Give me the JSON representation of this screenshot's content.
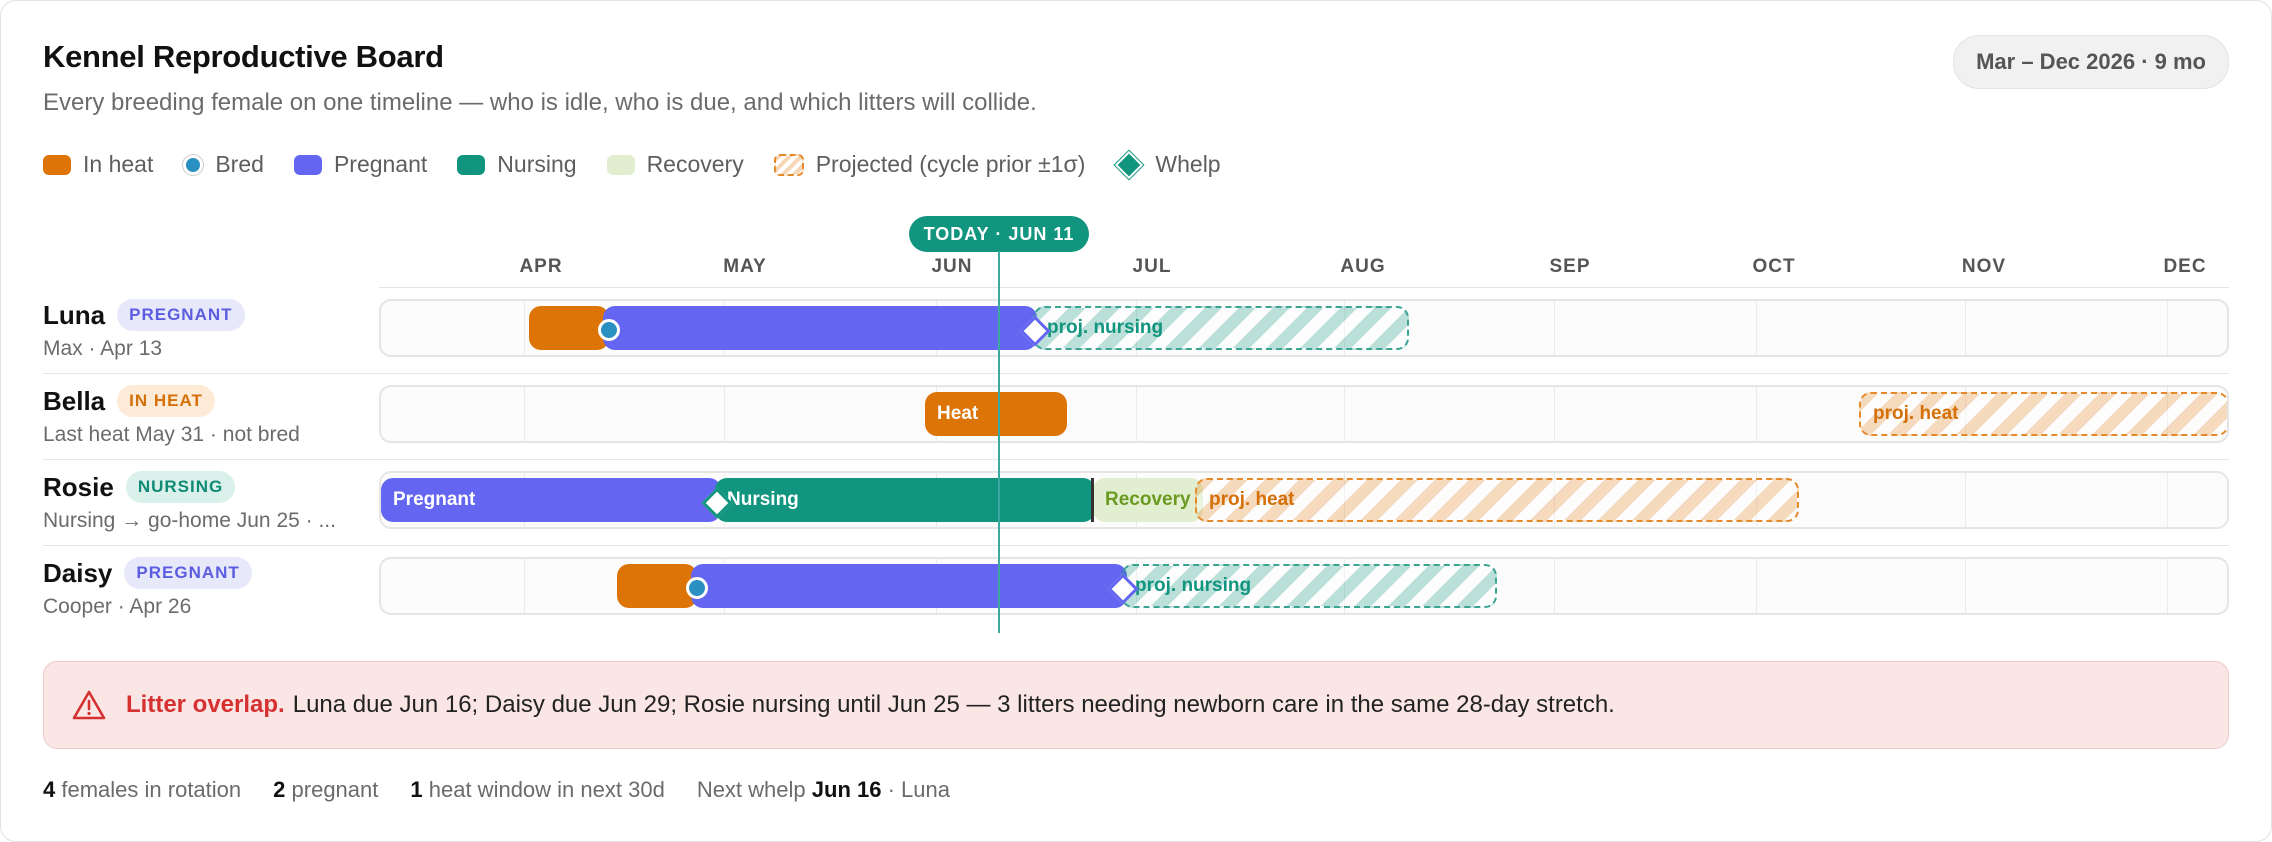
{
  "header": {
    "title": "Kennel Reproductive Board",
    "subtitle": "Every breeding female on one timeline — who is idle, who is due, and which litters will collide.",
    "range": "Mar – Dec 2026 · 9 mo"
  },
  "legend": {
    "heat": "In heat",
    "bred": "Bred",
    "pregnant": "Pregnant",
    "nursing": "Nursing",
    "recovery": "Recovery",
    "projected": "Projected (cycle prior ±1σ)",
    "whelp": "Whelp"
  },
  "today_label": "TODAY · JUN 11",
  "months": [
    "APR",
    "MAY",
    "JUN",
    "JUL",
    "AUG",
    "SEP",
    "OCT",
    "NOV",
    "DEC"
  ],
  "rows": [
    {
      "name": "Luna",
      "status": "PREGNANT",
      "meta": "Max · Apr 13",
      "proj_label": "proj. nursing"
    },
    {
      "name": "Bella",
      "status": "IN HEAT",
      "meta": "Last heat May 31 · not bred",
      "heat_label": "Heat",
      "proj_label": "proj. heat"
    },
    {
      "name": "Rosie",
      "status": "NURSING",
      "meta": "Nursing → go-home Jun 25 · ...",
      "pregnant_label": "Pregnant",
      "nursing_label": "Nursing",
      "recovery_label": "Recovery",
      "proj_label": "proj. heat"
    },
    {
      "name": "Daisy",
      "status": "PREGNANT",
      "meta": "Cooper · Apr 26",
      "proj_label": "proj. nursing"
    }
  ],
  "alert": {
    "icon": "warning-triangle-icon",
    "title": "Litter overlap.",
    "message": "Luna due Jun 16; Daisy due Jun 29; Rosie nursing until Jun 25 — 3 litters needing newborn care in the same 28-day stretch."
  },
  "footer": {
    "females_count": "4",
    "females_label": "females in rotation",
    "pregnant_count": "2",
    "pregnant_label": "pregnant",
    "heat_count": "1",
    "heat_label": "heat window in next 30d",
    "next_whelp_label": "Next whelp",
    "next_whelp_date": "Jun 16",
    "next_whelp_name": "· Luna"
  },
  "colors": {
    "heat": "#dd7408",
    "bred": "#2a8fc1",
    "pregnant": "#6466f1",
    "nursing": "#11957f",
    "recovery": "#e1efd0",
    "alert": "#d63131"
  }
}
